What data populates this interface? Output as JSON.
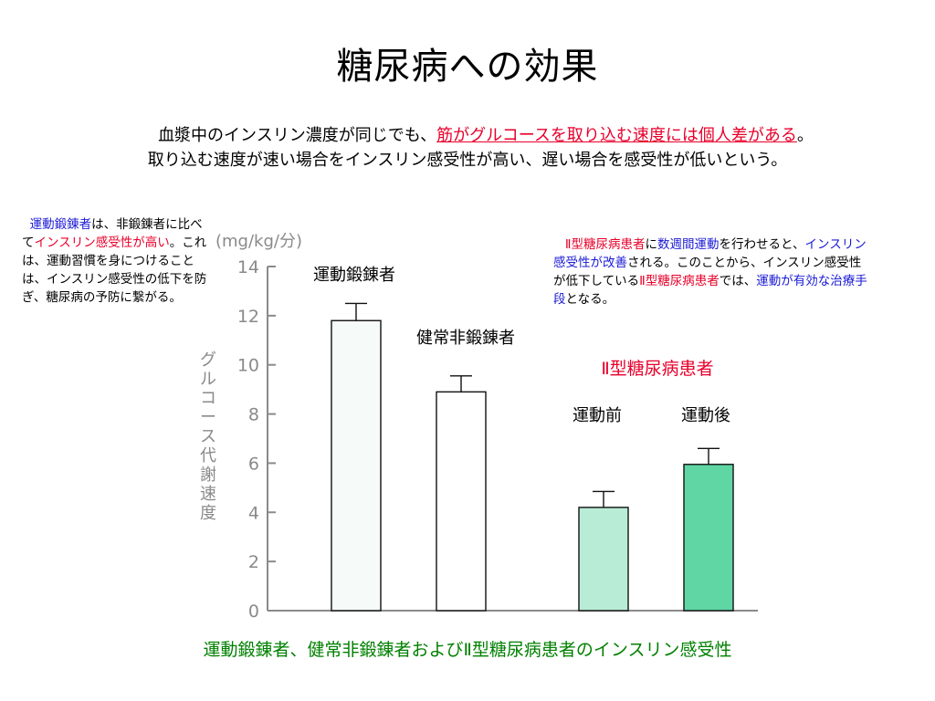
{
  "slide": {
    "title": "糖尿病への効果",
    "intro_line1_pre": "血漿中のインスリン濃度が同じでも、",
    "intro_line1_emph": "筋がグルコースを取り込む速度には個人差がある",
    "intro_line1_post": "。",
    "intro_line2": "取り込む速度が速い場合をインスリン感受性が高い、遅い場合を感受性が低いという。",
    "note_left": {
      "p1": "運動鍛錬者",
      "p2": "は、非鍛錬者に比べて",
      "p3": "インスリン感受性が高い",
      "p4": "。これは、運動習慣を身につけることは、インスリン感受性の低下を防ぎ、糖尿病の予防に繋がる。"
    },
    "note_right": {
      "p1": "Ⅱ型糖尿病患者",
      "p2": "に",
      "p3": "数週間運動",
      "p4": "を行わせると、",
      "p5": "インスリン感受性が改善",
      "p6": "される。このことから、インスリン感受性が低下している",
      "p7": "Ⅱ型糖尿病患者",
      "p8": "では、",
      "p9": "運動が有効な治療手段",
      "p10": "となる。"
    },
    "caption": "運動鍛錬者、健常非鍛錬者およびⅡ型糖尿病患者のインスリン感受性"
  },
  "colors": {
    "red": "#e8002a",
    "blue": "#1a1ad6",
    "green": "#008000",
    "axis_gray": "#8a8a8a",
    "bar_fills": [
      "#f6fbf9",
      "#ffffff",
      "#b9ecd6",
      "#5fd6a4"
    ]
  },
  "chart_data": {
    "type": "bar",
    "unit": "(mg/kg/分)",
    "ylabel": "グルコース代謝速度",
    "ylim": [
      0,
      14
    ],
    "yticks": [
      0,
      2,
      4,
      6,
      8,
      10,
      12,
      14
    ],
    "group_label": "Ⅱ型糖尿病患者",
    "categories": [
      "運動鍛錬者",
      "健常非鍛錬者",
      "運動前",
      "運動後"
    ],
    "values": [
      11.8,
      8.9,
      4.2,
      5.95
    ],
    "errors": [
      0.7,
      0.65,
      0.65,
      0.65
    ]
  }
}
